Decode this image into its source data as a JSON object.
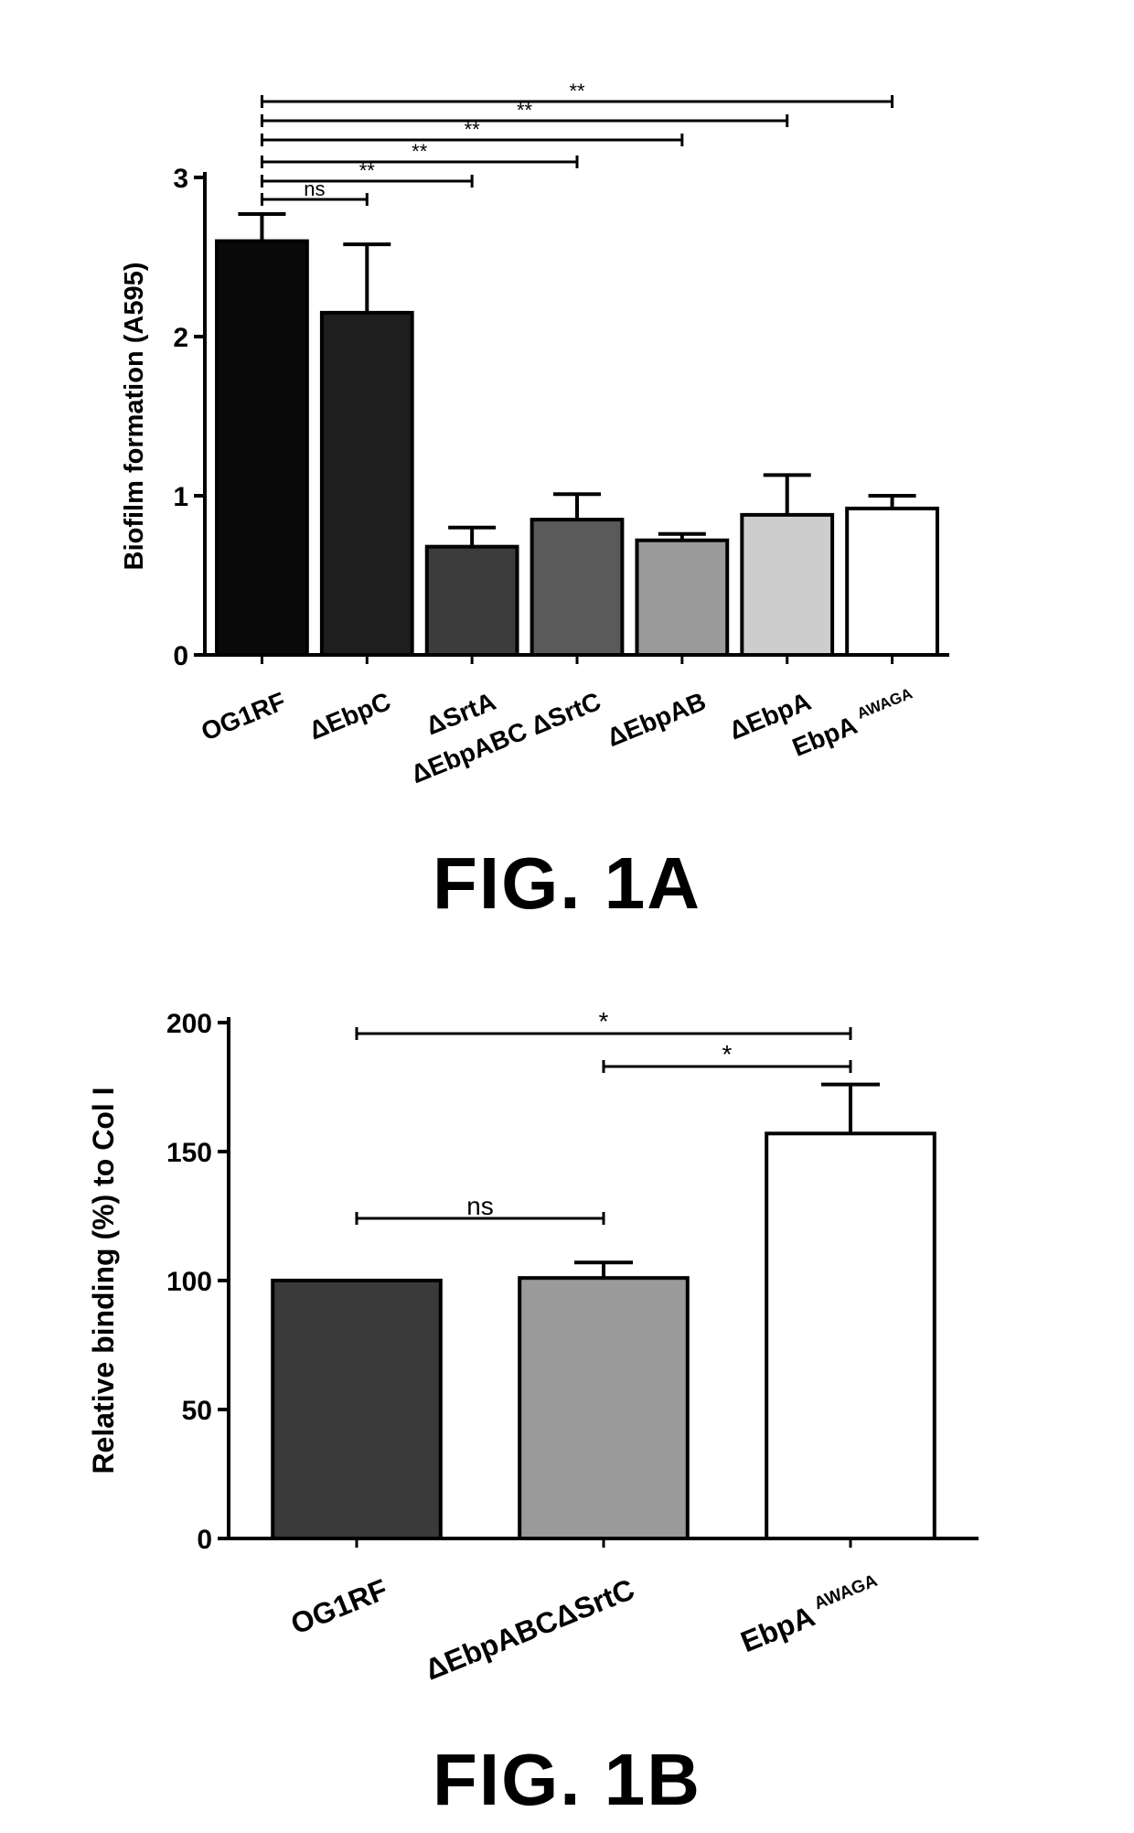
{
  "figure_a": {
    "caption": "FIG. 1A",
    "sig_labels": [
      "ns",
      "**",
      "**",
      "**",
      "**",
      "**"
    ]
  },
  "figure_b": {
    "caption": "FIG. 1B",
    "sig_labels": [
      "*",
      "*",
      "ns"
    ]
  },
  "chart_data": [
    {
      "type": "bar",
      "title": "",
      "xlabel": "",
      "ylabel": "Biofilm formation (A595)",
      "ylim": [
        0,
        3
      ],
      "yticks": [
        0,
        1,
        2,
        3
      ],
      "categories": [
        "OG1RF",
        "ΔEbpC",
        "ΔSrtA",
        "ΔEbpABC ΔSrtC",
        "ΔEbpAB",
        "ΔEbpA",
        "EbpA"
      ],
      "category_superscripts": [
        "",
        "",
        "",
        "",
        "",
        "",
        "AWAGA"
      ],
      "values": [
        2.6,
        2.15,
        0.68,
        0.85,
        0.72,
        0.88,
        0.92
      ],
      "errors": [
        0.17,
        0.43,
        0.12,
        0.16,
        0.04,
        0.25,
        0.08
      ],
      "bar_colors": [
        "#0a0a0a",
        "#1e1e1e",
        "#3c3c3c",
        "#5a5a5a",
        "#9a9a9a",
        "#cdcdcd",
        "#ffffff"
      ],
      "significance": [
        {
          "from": 0,
          "to": 1,
          "label": "ns"
        },
        {
          "from": 0,
          "to": 2,
          "label": "**"
        },
        {
          "from": 0,
          "to": 3,
          "label": "**"
        },
        {
          "from": 0,
          "to": 4,
          "label": "**"
        },
        {
          "from": 0,
          "to": 5,
          "label": "**"
        },
        {
          "from": 0,
          "to": 6,
          "label": "**"
        }
      ],
      "grid": false
    },
    {
      "type": "bar",
      "title": "",
      "xlabel": "",
      "ylabel": "Relative binding (%) to Col I",
      "ylim": [
        0,
        200
      ],
      "yticks": [
        0,
        50,
        100,
        150,
        200
      ],
      "categories": [
        "OG1RF",
        "ΔEbpABCΔSrtC",
        "EbpA"
      ],
      "category_superscripts": [
        "",
        "",
        "AWAGA"
      ],
      "values": [
        100,
        101,
        157
      ],
      "errors": [
        0,
        6,
        19
      ],
      "bar_colors": [
        "#3a3a3a",
        "#9a9a9a",
        "#ffffff"
      ],
      "significance": [
        {
          "from": 0,
          "to": 2,
          "label": "*"
        },
        {
          "from": 1,
          "to": 2,
          "label": "*"
        },
        {
          "from": 0,
          "to": 1,
          "label": "ns"
        }
      ],
      "grid": false
    }
  ]
}
